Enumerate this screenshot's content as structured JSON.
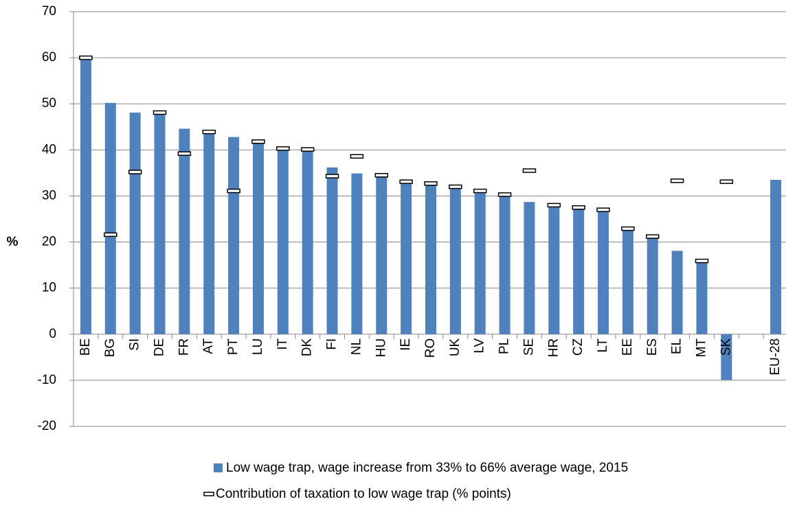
{
  "chart_data": {
    "type": "bar",
    "y_label": "%",
    "categories": [
      "BE",
      "BG",
      "SI",
      "DE",
      "FR",
      "AT",
      "PT",
      "LU",
      "IT",
      "DK",
      "FI",
      "NL",
      "HU",
      "IE",
      "RO",
      "UK",
      "LV",
      "PL",
      "SE",
      "HR",
      "CZ",
      "LT",
      "EE",
      "ES",
      "EL",
      "MT",
      "SK",
      null,
      "EU-28"
    ],
    "series": [
      {
        "name": "Low wage trap, wage increase from 33% to 66% average wage, 2015",
        "color": "#4f81bd",
        "values": [
          60,
          50.2,
          48.1,
          47.8,
          44.6,
          43.6,
          42.8,
          41.5,
          40.6,
          39.8,
          36.2,
          34.9,
          34.4,
          32.9,
          32.5,
          31.8,
          30.8,
          30.1,
          28.7,
          27.8,
          27.3,
          26.7,
          22.6,
          20.8,
          18.1,
          15.6,
          -9.9,
          null,
          33.5
        ]
      },
      {
        "name": "Contribution of taxation to low wage trap (% points)",
        "color": "#ffffff",
        "marker": "dash",
        "values": [
          60,
          21.6,
          35.2,
          48.1,
          39.2,
          43.9,
          31.1,
          41.8,
          40.3,
          40.1,
          34.3,
          38.6,
          34.5,
          33.1,
          32.7,
          32.0,
          31.1,
          30.3,
          35.5,
          28.0,
          27.5,
          27.0,
          22.9,
          21.2,
          33.3,
          15.9,
          33.1,
          null,
          null
        ]
      }
    ],
    "ylim": [
      -20,
      70
    ],
    "yticks": [
      -20,
      -10,
      0,
      10,
      20,
      30,
      40,
      50,
      60,
      70
    ],
    "grid": true
  }
}
